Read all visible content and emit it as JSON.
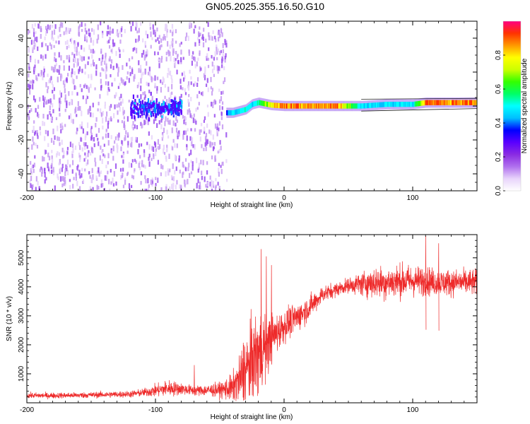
{
  "title": "GN05.2025.355.16.50.G10",
  "colors": {
    "snr_line": "#ee2a2a",
    "colormap": [
      "#ffffff",
      "#e8d4fb",
      "#b070ee",
      "#8a2be2",
      "#5a00ff",
      "#0000ff",
      "#00bfff",
      "#00ffff",
      "#00ff66",
      "#33ff00",
      "#ccff00",
      "#ffff00",
      "#ff9900",
      "#ff3300",
      "#ff0080"
    ]
  },
  "chart_data": [
    {
      "type": "heatmap",
      "title": "GN05.2025.355.16.50.G10",
      "xlabel": "Height of straight line (km)",
      "ylabel": "Frequency (Hz)",
      "xlim": [
        -200,
        150
      ],
      "ylim": [
        -50,
        50
      ],
      "x_ticks": [
        -200,
        -100,
        0,
        100
      ],
      "x_tick_labels": [
        "-200",
        "-100",
        "0",
        "100"
      ],
      "y_ticks": [
        -40,
        -20,
        0,
        20,
        40
      ],
      "y_tick_labels": [
        "-40",
        "-20",
        "0",
        "20",
        "40"
      ],
      "colorbar": {
        "label": "Normalized spectral amplitude",
        "range": [
          0,
          1
        ],
        "ticks": [
          0.0,
          0.2,
          0.4,
          0.6,
          0.8
        ],
        "tick_labels": [
          "0.0",
          "0.2",
          "0.4",
          "0.6",
          "0.8"
        ]
      },
      "ridge": {
        "x": [
          -45,
          -40,
          -35,
          -30,
          -25,
          -20,
          -10,
          0,
          10,
          20,
          40,
          60,
          80,
          100,
          110,
          150
        ],
        "frequency_hz": [
          -4,
          -4,
          -3,
          -2,
          1,
          2,
          0.5,
          0,
          0,
          0,
          0,
          0,
          1,
          1,
          2,
          2
        ],
        "amplitude": [
          0.4,
          0.5,
          0.5,
          0.55,
          0.5,
          0.6,
          0.85,
          0.95,
          0.95,
          0.9,
          0.95,
          0.5,
          0.5,
          0.5,
          0.95,
          0.95
        ]
      },
      "noise_region": {
        "x_range": [
          -200,
          -45
        ],
        "frequency_range": [
          -50,
          50
        ],
        "amplitude": [
          0.05,
          0.3
        ]
      }
    },
    {
      "type": "line",
      "xlabel": "Height of straight line (km)",
      "ylabel": "SNR (10 * v/v)",
      "xlim": [
        -200,
        150
      ],
      "ylim": [
        0,
        5800
      ],
      "x_ticks": [
        -200,
        -100,
        0,
        100
      ],
      "x_tick_labels": [
        "-200",
        "-100",
        "0",
        "100"
      ],
      "y_ticks": [
        1000,
        2000,
        3000,
        4000,
        5000
      ],
      "y_tick_labels": [
        "1000",
        "2000",
        "3000",
        "4000",
        "5000"
      ],
      "series": [
        {
          "x": [
            -200,
            -180,
            -160,
            -140,
            -120,
            -110,
            -100,
            -90,
            -80,
            -70,
            -60,
            -50,
            -40,
            -35,
            -30,
            -25,
            -20,
            -15,
            -10,
            -5,
            0,
            10,
            20,
            30,
            40,
            50,
            60,
            70,
            80,
            90,
            100,
            110,
            120,
            130,
            140,
            150
          ],
          "y": [
            250,
            250,
            260,
            280,
            300,
            350,
            420,
            500,
            480,
            420,
            430,
            450,
            500,
            750,
            1100,
            1450,
            1700,
            1950,
            2200,
            2450,
            2650,
            2950,
            3300,
            3750,
            3900,
            4050,
            4100,
            4150,
            4150,
            4200,
            4200,
            4200,
            4150,
            4150,
            4150,
            4150
          ],
          "noise_amplitude": [
            120,
            120,
            120,
            130,
            140,
            160,
            260,
            350,
            250,
            200,
            250,
            300,
            600,
            1200,
            1500,
            1700,
            1900,
            1500,
            1000,
            800,
            700,
            600,
            500,
            350,
            300,
            300,
            500,
            650,
            700,
            700,
            650,
            600,
            550,
            550,
            550,
            550
          ],
          "spikes": [
            {
              "x": -70,
              "y": 1300
            },
            {
              "x": -18,
              "y": 5300
            },
            {
              "x": -14,
              "y": 5050
            },
            {
              "x": -10,
              "y": 4750
            },
            {
              "x": 110,
              "y": 5750
            },
            {
              "x": 120,
              "y": 5500
            }
          ]
        }
      ]
    }
  ]
}
